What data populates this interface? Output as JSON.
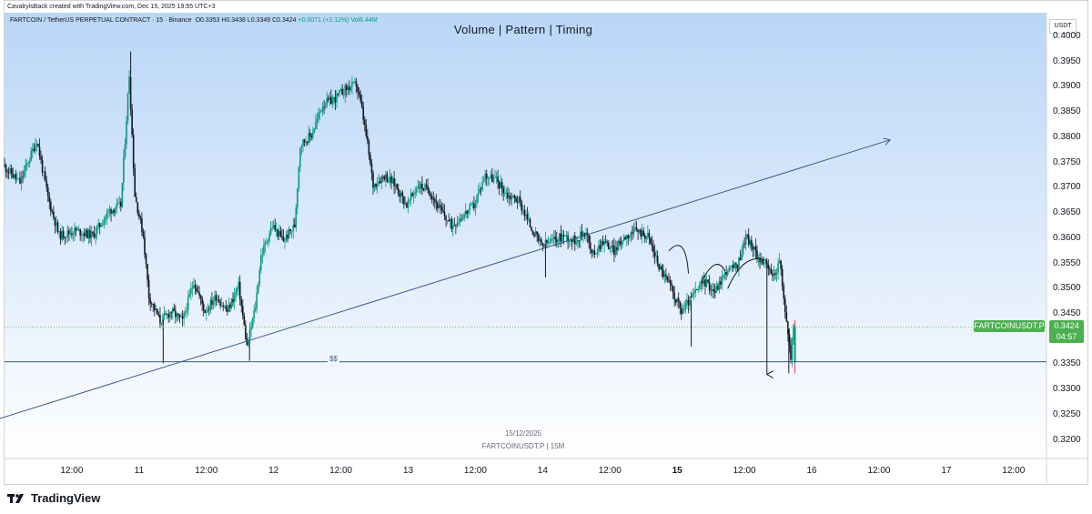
{
  "header": {
    "created_by": "CavalryisBack created with TradingView.com, Dec 15, 2025 19:55 UTC+3"
  },
  "legend": {
    "symbol": "FARTCOIN / TetherUS PERPETUAL CONTRACT · 15 · Binance",
    "open": "O0.3353",
    "high": "H0.3438",
    "low": "L0.3349",
    "close": "C0.3424",
    "change": "+0.0071 (+2.12%)",
    "volume": "Vol6.44M"
  },
  "chart_title": "Volume   |   Pattern   |   Timing",
  "currency_label": "USDT",
  "price_badge": {
    "symbol": "FARTCOINUSDT.P",
    "price": "0.3424",
    "countdown": "04:57"
  },
  "support_label": "$$",
  "watermark": {
    "date": "15/12/2025",
    "symbol": "FARTCOINUSDT.P | 15M"
  },
  "brand": "TradingView",
  "colors": {
    "up": "#089981",
    "down": "#131722",
    "badge": "#4caf50",
    "trendline": "#3a5a8a",
    "last_candle": "#f23645"
  },
  "chart_data": {
    "type": "candlestick",
    "symbol": "FARTCOINUSDT.P",
    "interval": "15",
    "y_axis": {
      "range": [
        0.318,
        0.401
      ],
      "ticks": [
        "0.4000",
        "0.3950",
        "0.3900",
        "0.3850",
        "0.3800",
        "0.3750",
        "0.3700",
        "0.3650",
        "0.3600",
        "0.3550",
        "0.3500",
        "0.3450",
        "0.3400",
        "0.3350",
        "0.3300",
        "0.3250",
        "0.3200"
      ]
    },
    "x_axis": {
      "range_hours": [
        0,
        108
      ],
      "ticks": [
        {
          "label": "12:00",
          "t": 12
        },
        {
          "label": "11",
          "t": 24
        },
        {
          "label": "12:00",
          "t": 36
        },
        {
          "label": "12",
          "t": 48
        },
        {
          "label": "12:00",
          "t": 60
        },
        {
          "label": "13",
          "t": 72
        },
        {
          "label": "12:00",
          "t": 84
        },
        {
          "label": "14",
          "t": 96
        },
        {
          "label": "12:00",
          "t": 108
        },
        {
          "label": "15",
          "t": 120,
          "bold": true
        },
        {
          "label": "12:00",
          "t": 132
        },
        {
          "label": "16",
          "t": 144
        },
        {
          "label": "12:00",
          "t": 156
        },
        {
          "label": "17",
          "t": 168
        },
        {
          "label": "12:00",
          "t": 180
        }
      ],
      "note": "t = hours since Dec 10 00:00"
    },
    "price_path": [
      {
        "t": 0,
        "p": 0.3745
      },
      {
        "t": 3,
        "p": 0.371
      },
      {
        "t": 6,
        "p": 0.3795
      },
      {
        "t": 8,
        "p": 0.368
      },
      {
        "t": 10,
        "p": 0.3605
      },
      {
        "t": 13,
        "p": 0.3615
      },
      {
        "t": 16,
        "p": 0.3605
      },
      {
        "t": 19,
        "p": 0.3655
      },
      {
        "t": 21,
        "p": 0.3665
      },
      {
        "t": 22.5,
        "p": 0.3925
      },
      {
        "t": 23.5,
        "p": 0.3685
      },
      {
        "t": 25,
        "p": 0.3605
      },
      {
        "t": 26,
        "p": 0.3485
      },
      {
        "t": 28,
        "p": 0.3435
      },
      {
        "t": 30,
        "p": 0.3455
      },
      {
        "t": 32,
        "p": 0.3435
      },
      {
        "t": 34,
        "p": 0.3515
      },
      {
        "t": 36,
        "p": 0.3455
      },
      {
        "t": 38,
        "p": 0.3485
      },
      {
        "t": 40,
        "p": 0.3455
      },
      {
        "t": 42,
        "p": 0.3505
      },
      {
        "t": 43.5,
        "p": 0.3385
      },
      {
        "t": 45,
        "p": 0.3465
      },
      {
        "t": 46,
        "p": 0.3565
      },
      {
        "t": 48,
        "p": 0.3625
      },
      {
        "t": 50,
        "p": 0.3595
      },
      {
        "t": 52,
        "p": 0.3625
      },
      {
        "t": 53,
        "p": 0.3785
      },
      {
        "t": 55,
        "p": 0.3805
      },
      {
        "t": 57,
        "p": 0.3865
      },
      {
        "t": 59,
        "p": 0.3875
      },
      {
        "t": 61,
        "p": 0.3895
      },
      {
        "t": 63,
        "p": 0.3905
      },
      {
        "t": 64,
        "p": 0.3855
      },
      {
        "t": 65,
        "p": 0.3785
      },
      {
        "t": 66,
        "p": 0.3705
      },
      {
        "t": 68,
        "p": 0.3725
      },
      {
        "t": 70,
        "p": 0.3705
      },
      {
        "t": 72,
        "p": 0.3665
      },
      {
        "t": 74,
        "p": 0.3705
      },
      {
        "t": 76,
        "p": 0.3695
      },
      {
        "t": 78,
        "p": 0.3655
      },
      {
        "t": 80,
        "p": 0.3625
      },
      {
        "t": 82,
        "p": 0.3645
      },
      {
        "t": 84,
        "p": 0.3665
      },
      {
        "t": 86,
        "p": 0.3725
      },
      {
        "t": 88,
        "p": 0.3715
      },
      {
        "t": 90,
        "p": 0.3685
      },
      {
        "t": 92,
        "p": 0.3675
      },
      {
        "t": 94,
        "p": 0.3625
      },
      {
        "t": 96,
        "p": 0.3585
      },
      {
        "t": 98,
        "p": 0.3595
      },
      {
        "t": 100,
        "p": 0.3605
      },
      {
        "t": 102,
        "p": 0.3595
      },
      {
        "t": 104,
        "p": 0.3615
      },
      {
        "t": 105,
        "p": 0.3565
      },
      {
        "t": 107,
        "p": 0.3595
      },
      {
        "t": 109,
        "p": 0.3575
      },
      {
        "t": 111,
        "p": 0.3605
      },
      {
        "t": 113,
        "p": 0.3615
      },
      {
        "t": 115,
        "p": 0.3605
      },
      {
        "t": 117,
        "p": 0.3545
      },
      {
        "t": 119,
        "p": 0.3505
      },
      {
        "t": 121,
        "p": 0.3455
      },
      {
        "t": 123,
        "p": 0.3485
      },
      {
        "t": 125,
        "p": 0.3515
      },
      {
        "t": 127,
        "p": 0.3495
      },
      {
        "t": 129,
        "p": 0.3535
      },
      {
        "t": 131,
        "p": 0.3545
      },
      {
        "t": 132.5,
        "p": 0.3605
      },
      {
        "t": 134,
        "p": 0.3575
      },
      {
        "t": 136,
        "p": 0.3545
      },
      {
        "t": 137.5,
        "p": 0.3525
      },
      {
        "t": 138.5,
        "p": 0.3555
      },
      {
        "t": 139.5,
        "p": 0.3455
      },
      {
        "t": 140.5,
        "p": 0.3365
      },
      {
        "t": 141,
        "p": 0.3424
      }
    ],
    "horizontal_line": {
      "price": 0.3355,
      "label": "$$"
    },
    "current_price_line": 0.3424,
    "trendline": {
      "from": {
        "t": -5,
        "p": 0.3228
      },
      "to": {
        "t": 158,
        "p": 0.3795
      },
      "arrow": true
    },
    "projection_arrow": {
      "from_price": 0.3555,
      "to_price": 0.333,
      "t": 136
    }
  }
}
